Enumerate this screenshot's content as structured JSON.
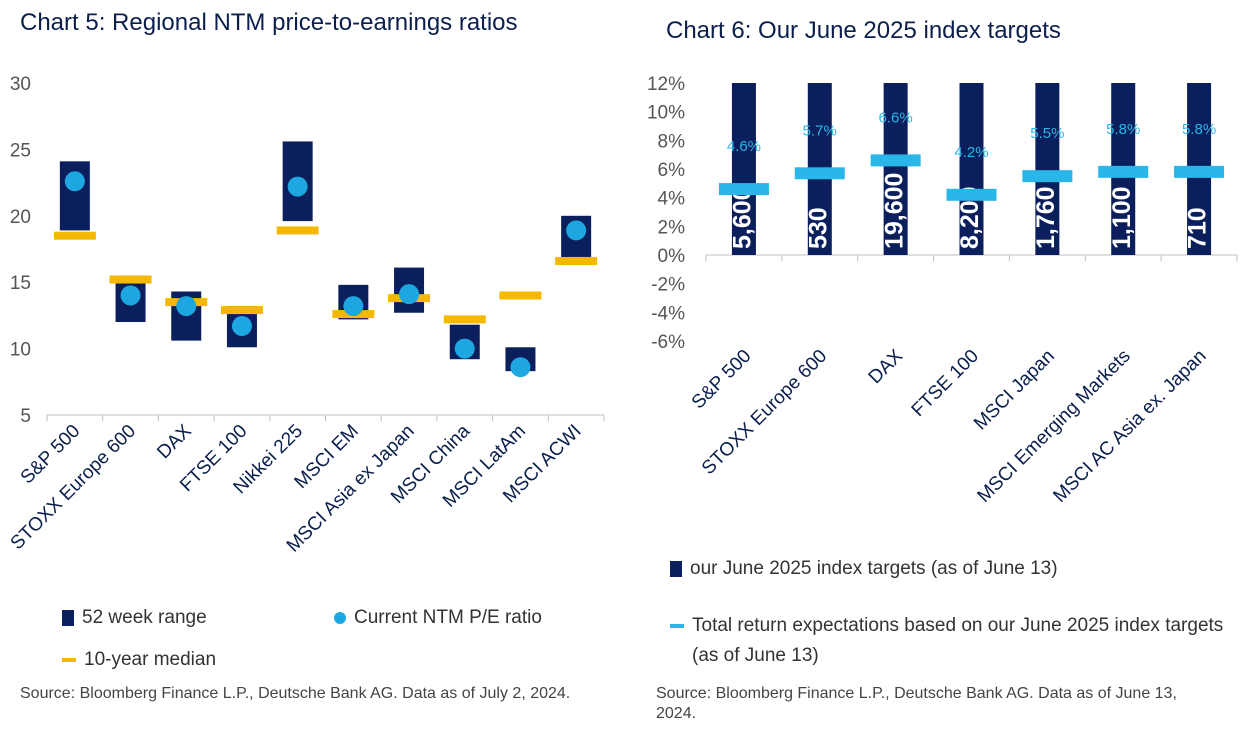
{
  "chart5": {
    "title": "Chart 5: Regional NTM price-to-earnings ratios",
    "source": "Source: Bloomberg Finance L.P., Deutsche Bank AG. Data as of July 2, 2024.",
    "colors": {
      "range": "#0b1f5c",
      "current": "#1ea6e0",
      "median": "#f5b800"
    },
    "legend": {
      "range": "52 week range",
      "current": "Current NTM P/E ratio",
      "median": "10-year median"
    }
  },
  "chart6": {
    "title": "Chart 6: Our June 2025 index targets",
    "source": "Source: Bloomberg Finance L.P., Deutsche Bank AG. Data as of June 13, 2024.",
    "colors": {
      "bar": "#0b1f5c",
      "marker": "#29b6e8"
    },
    "legend": {
      "targets": "our June 2025 index targets (as of June 13)",
      "returns": "Total return expectations based on our June 2025 index targets (as of June 13)"
    }
  },
  "chart_data": [
    {
      "type": "bar",
      "title": "Chart 5: Regional NTM price-to-earnings ratios",
      "xlabel": "",
      "ylabel": "",
      "ylim": [
        5,
        30
      ],
      "yticks": [
        5,
        10,
        15,
        20,
        25,
        30
      ],
      "grid": false,
      "categories": [
        "S&P 500",
        "STOXX Europe 600",
        "DAX",
        "FTSE 100",
        "Nikkei 225",
        "MSCI EM",
        "MSCI Asia ex Japan",
        "MSCI China",
        "MSCI LatAm",
        "MSCI ACWI"
      ],
      "series": [
        {
          "name": "52 week range (low)",
          "values": [
            18.9,
            12.0,
            10.6,
            10.1,
            19.6,
            12.2,
            12.7,
            9.2,
            8.3,
            16.3
          ]
        },
        {
          "name": "52 week range (high)",
          "values": [
            24.1,
            15.5,
            14.3,
            13.2,
            25.6,
            14.8,
            16.1,
            11.8,
            10.1,
            20.0
          ]
        },
        {
          "name": "Current NTM P/E ratio",
          "values": [
            22.6,
            14.0,
            13.2,
            11.7,
            22.2,
            13.2,
            14.1,
            10.0,
            8.6,
            18.9
          ]
        },
        {
          "name": "10-year median",
          "values": [
            18.5,
            15.2,
            13.5,
            12.9,
            18.9,
            12.6,
            13.8,
            12.2,
            14.0,
            16.6
          ]
        }
      ]
    },
    {
      "type": "bar",
      "title": "Chart 6: Our June 2025 index targets",
      "xlabel": "",
      "ylabel": "",
      "ylim": [
        -6,
        12
      ],
      "yticks": [
        "-6%",
        "-4%",
        "-2%",
        "0%",
        "2%",
        "4%",
        "6%",
        "8%",
        "10%",
        "12%"
      ],
      "yticks_values": [
        -6,
        -4,
        -2,
        0,
        2,
        4,
        6,
        8,
        10,
        12
      ],
      "grid": false,
      "categories": [
        "S&P 500",
        "STOXX Europe 600",
        "DAX",
        "FTSE 100",
        "MSCI Japan",
        "MSCI Emerging Markets",
        "MSCI AC Asia ex. Japan"
      ],
      "series": [
        {
          "name": "our June 2025 index targets (as of June 13)",
          "labels": [
            "5,600",
            "530",
            "19,600",
            "8,200",
            "1,760",
            "1,100",
            "710"
          ]
        },
        {
          "name": "Total return expectations based on our June 2025 index targets (as of June 13)",
          "values": [
            4.6,
            5.7,
            6.6,
            4.2,
            5.5,
            5.8,
            5.8
          ],
          "labels": [
            "4.6%",
            "5.7%",
            "6.6%",
            "4.2%",
            "5.5%",
            "5.8%",
            "5.8%"
          ]
        }
      ]
    }
  ]
}
